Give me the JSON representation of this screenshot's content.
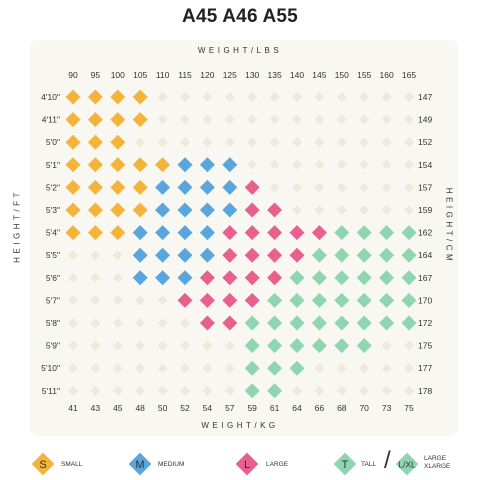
{
  "title": "A45 A46 A55",
  "axis_titles": {
    "top": "WEIGHT/LBS",
    "bottom": "WEIGHT/KG",
    "left": "HEIGHT/FT",
    "right": "HEIGHT/CM"
  },
  "colors": {
    "S": "#f4b43b",
    "M": "#5aa6dc",
    "L": "#e8608f",
    "T": "#8fd5b3",
    "empty": "#efe9d9"
  },
  "legend": {
    "small": {
      "symbol": "S",
      "label": "SMALL"
    },
    "medium": {
      "symbol": "M",
      "label": "MEDIUM"
    },
    "large": {
      "symbol": "L",
      "label": "LARGE"
    },
    "tall": {
      "symbol": "T",
      "label": "TALL"
    },
    "lxl": {
      "symbol": "L/XL",
      "label_line1": "LARGE",
      "label_line2": "XLARGE"
    }
  },
  "chart_data": {
    "type": "heatmap",
    "x_lbs": [
      "90",
      "95",
      "100",
      "105",
      "110",
      "115",
      "120",
      "125",
      "130",
      "135",
      "140",
      "145",
      "150",
      "155",
      "160",
      "165"
    ],
    "x_kg": [
      "41",
      "43",
      "45",
      "48",
      "50",
      "52",
      "54",
      "57",
      "59",
      "61",
      "64",
      "66",
      "68",
      "70",
      "73",
      "75"
    ],
    "y_ft": [
      "4'10\"",
      "4'11\"",
      "5'0\"",
      "5'1\"",
      "5'2\"",
      "5'3\"",
      "5'4\"",
      "5'5\"",
      "5'6\"",
      "5'7\"",
      "5'8\"",
      "5'9\"",
      "5'10\"",
      "5'11\""
    ],
    "y_cm": [
      "147",
      "149",
      "152",
      "154",
      "157",
      "159",
      "162",
      "164",
      "167",
      "170",
      "172",
      "175",
      "177",
      "178"
    ],
    "categories": {
      "S": "SMALL",
      "M": "MEDIUM",
      "L": "LARGE",
      "T": "TALL"
    },
    "grid": [
      "SSSS............",
      "SSSS............",
      "SSS.............",
      "SSSSSMMM........",
      "SSSSMMMML.......",
      "SSSSMMMMLL......",
      "SSSMMMMLLLLLTTTT",
      "...MMMMLLLLTTTTT",
      "...MMMLLLLTTTTTT",
      ".....LLLLTTTTTTT",
      "......LLTTTTTTTT",
      "........TTTTTT..",
      "........TTT.....",
      "........TT......"
    ]
  }
}
